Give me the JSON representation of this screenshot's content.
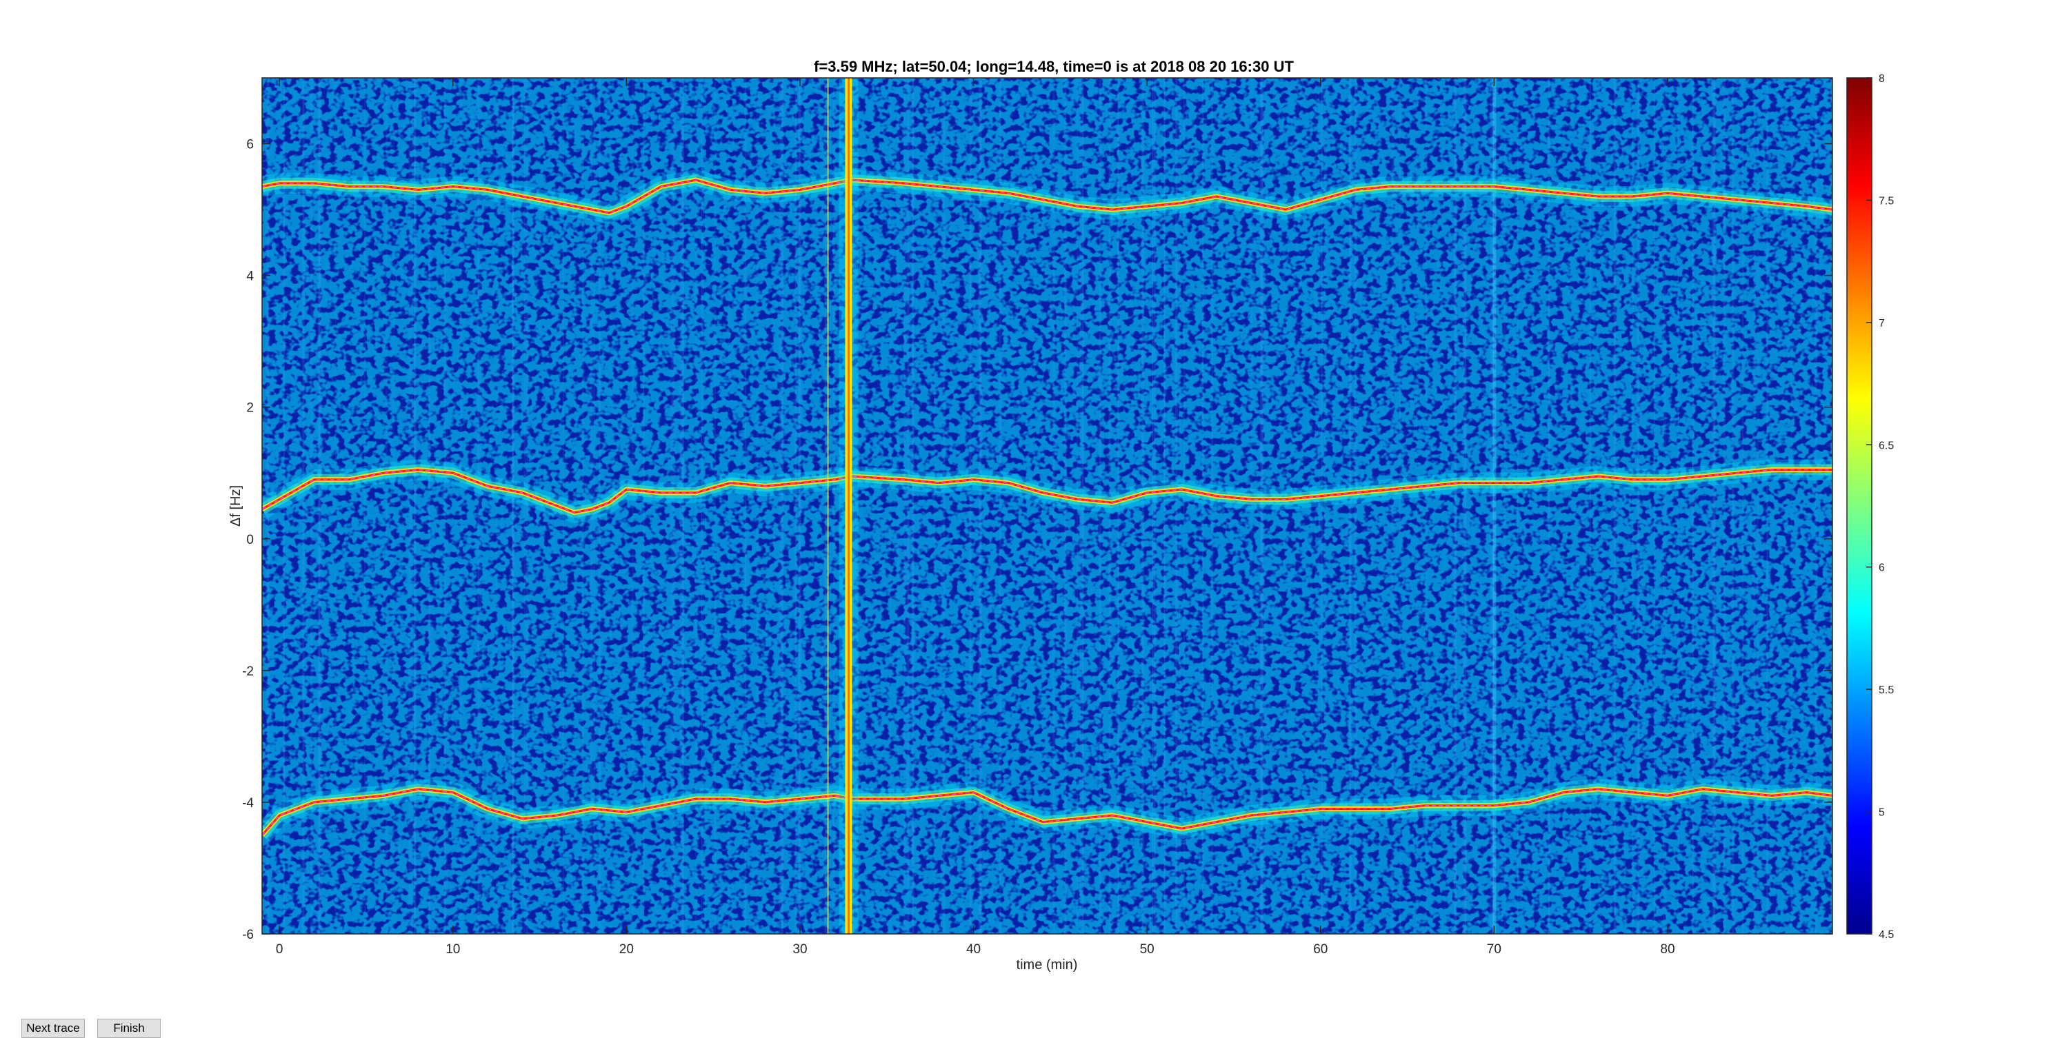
{
  "chart_data": {
    "type": "heatmap",
    "title": "f=3.59 MHz;  lat=50.04; long=14.48, time=0 is at 2018 08 20 16:30 UT",
    "xlabel": "time (min)",
    "ylabel": "Δf [Hz]",
    "xlim": [
      -1,
      89.5
    ],
    "ylim": [
      -6,
      7
    ],
    "xticks": [
      0,
      10,
      20,
      30,
      40,
      50,
      60,
      70,
      80
    ],
    "yticks": [
      -6,
      -4,
      -2,
      0,
      2,
      4,
      6
    ],
    "colorbar": {
      "range": [
        4.5,
        8
      ],
      "ticks": [
        "4.5",
        "5",
        "5.5",
        "6",
        "6.5",
        "7",
        "7.5",
        "8"
      ],
      "colormap": "jet"
    },
    "series": [
      {
        "x": [
          -1,
          0,
          2,
          4,
          6,
          8,
          10,
          12,
          14,
          16,
          18,
          19,
          20,
          22,
          24,
          26,
          28,
          30,
          32,
          33,
          36,
          38,
          40,
          42,
          44,
          46,
          48,
          50,
          52,
          54,
          56,
          58,
          60,
          62,
          64,
          66,
          68,
          70,
          72,
          74,
          76,
          78,
          80,
          82,
          84,
          86,
          88,
          89.5
        ],
        "y": [
          5.35,
          5.4,
          5.4,
          5.35,
          5.35,
          5.3,
          5.35,
          5.3,
          5.2,
          5.1,
          5.0,
          4.95,
          5.05,
          5.35,
          5.45,
          5.3,
          5.25,
          5.3,
          5.4,
          5.45,
          5.4,
          5.35,
          5.3,
          5.25,
          5.15,
          5.05,
          5.0,
          5.05,
          5.1,
          5.2,
          5.1,
          5.0,
          5.15,
          5.3,
          5.35,
          5.35,
          5.35,
          5.35,
          5.3,
          5.25,
          5.2,
          5.2,
          5.25,
          5.2,
          5.15,
          5.1,
          5.05,
          5.0
        ]
      },
      {
        "x": [
          -1,
          0,
          2,
          4,
          6,
          8,
          10,
          12,
          14,
          16,
          17,
          18,
          19,
          20,
          22,
          24,
          26,
          28,
          30,
          32,
          33,
          36,
          38,
          40,
          42,
          44,
          46,
          48,
          50,
          52,
          54,
          56,
          58,
          60,
          62,
          64,
          66,
          68,
          70,
          72,
          74,
          76,
          78,
          80,
          82,
          84,
          86,
          88,
          89.5
        ],
        "y": [
          0.45,
          0.6,
          0.9,
          0.9,
          1.0,
          1.05,
          1.0,
          0.8,
          0.7,
          0.5,
          0.4,
          0.45,
          0.55,
          0.75,
          0.7,
          0.7,
          0.85,
          0.8,
          0.85,
          0.9,
          0.95,
          0.9,
          0.85,
          0.9,
          0.85,
          0.7,
          0.6,
          0.55,
          0.7,
          0.75,
          0.65,
          0.6,
          0.6,
          0.65,
          0.7,
          0.75,
          0.8,
          0.85,
          0.85,
          0.85,
          0.9,
          0.95,
          0.9,
          0.9,
          0.95,
          1.0,
          1.05,
          1.05,
          1.05
        ]
      },
      {
        "x": [
          -1,
          0,
          2,
          4,
          6,
          8,
          10,
          12,
          14,
          16,
          18,
          20,
          22,
          24,
          26,
          28,
          30,
          32,
          33,
          36,
          38,
          40,
          42,
          44,
          46,
          48,
          50,
          52,
          54,
          56,
          58,
          60,
          62,
          64,
          66,
          68,
          70,
          72,
          74,
          76,
          78,
          80,
          82,
          84,
          86,
          88,
          89.5
        ],
        "y": [
          -4.5,
          -4.2,
          -4.0,
          -3.95,
          -3.9,
          -3.8,
          -3.85,
          -4.1,
          -4.25,
          -4.2,
          -4.1,
          -4.15,
          -4.05,
          -3.95,
          -3.95,
          -4.0,
          -3.95,
          -3.9,
          -3.95,
          -3.95,
          -3.9,
          -3.85,
          -4.1,
          -4.3,
          -4.25,
          -4.2,
          -4.3,
          -4.4,
          -4.3,
          -4.2,
          -4.15,
          -4.1,
          -4.1,
          -4.1,
          -4.05,
          -4.05,
          -4.05,
          -4.0,
          -3.85,
          -3.8,
          -3.85,
          -3.9,
          -3.8,
          -3.85,
          -3.9,
          -3.85,
          -3.9
        ]
      }
    ]
  },
  "buttons": {
    "next_label": "Next trace",
    "finish_label": "Finish"
  }
}
